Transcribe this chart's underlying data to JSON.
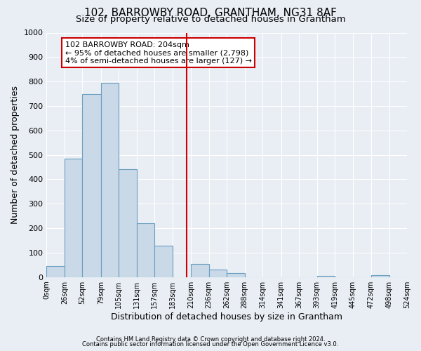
{
  "title": "102, BARROWBY ROAD, GRANTHAM, NG31 8AF",
  "subtitle": "Size of property relative to detached houses in Grantham",
  "xlabel": "Distribution of detached houses by size in Grantham",
  "ylabel": "Number of detached properties",
  "bin_edges": [
    0,
    26,
    52,
    79,
    105,
    131,
    157,
    183,
    210,
    236,
    262,
    288,
    314,
    341,
    367,
    393,
    419,
    445,
    472,
    498,
    524
  ],
  "bar_heights": [
    45,
    485,
    750,
    795,
    440,
    220,
    128,
    0,
    55,
    30,
    15,
    0,
    0,
    0,
    0,
    5,
    0,
    0,
    8,
    0
  ],
  "bar_color": "#c9d9e8",
  "bar_edge_color": "#6a9ec0",
  "property_size": 204,
  "vline_color": "#cc0000",
  "annotation_text": "102 BARROWBY ROAD: 204sqm\n← 95% of detached houses are smaller (2,798)\n4% of semi-detached houses are larger (127) →",
  "annotation_box_color": "#ffffff",
  "annotation_box_edge": "#cc0000",
  "ylim": [
    0,
    1000
  ],
  "yticks": [
    0,
    100,
    200,
    300,
    400,
    500,
    600,
    700,
    800,
    900,
    1000
  ],
  "background_color": "#e8eef4",
  "axes_background": "#e8eef4",
  "grid_color": "#ffffff",
  "footer_line1": "Contains HM Land Registry data © Crown copyright and database right 2024.",
  "footer_line2": "Contains public sector information licensed under the Open Government Licence v3.0.",
  "title_fontsize": 11,
  "subtitle_fontsize": 9.5,
  "xlabel_fontsize": 9,
  "ylabel_fontsize": 9
}
